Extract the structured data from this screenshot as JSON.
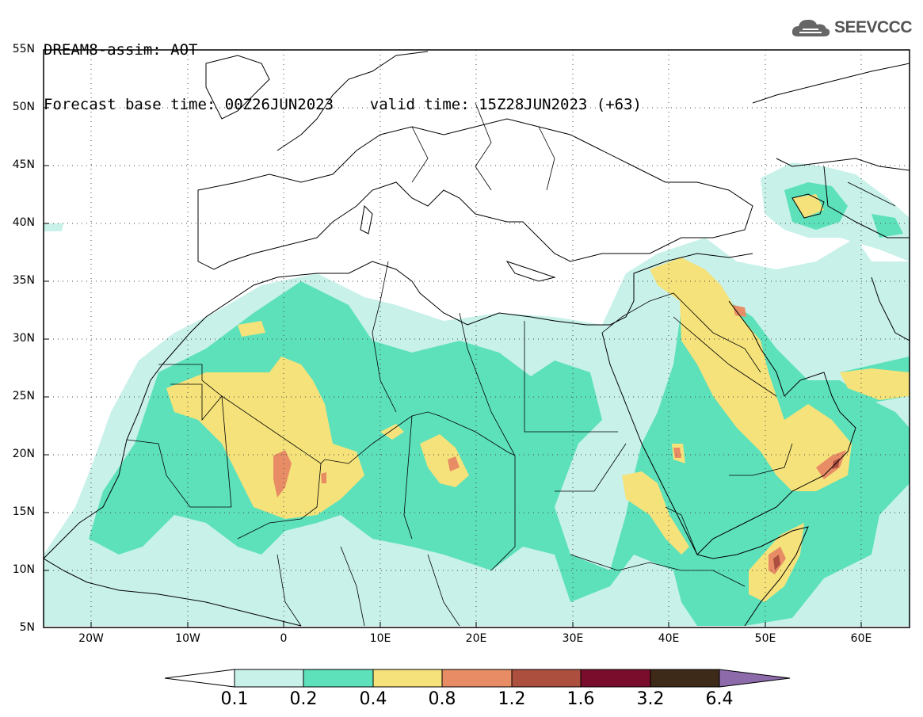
{
  "header": {
    "line1": "DREAM8-assim: AOT",
    "line2": "Forecast base time: 00Z26JUN2023    valid time: 15Z28JUN2023 (+63)"
  },
  "logo": {
    "text": "SEEVCCC",
    "icon": "cloud-icon"
  },
  "map": {
    "lon_range": [
      -25,
      65
    ],
    "lat_range": [
      5,
      55
    ],
    "grid": "dotted",
    "lat_labels": [
      "55N",
      "50N",
      "45N",
      "40N",
      "35N",
      "30N",
      "25N",
      "20N",
      "15N",
      "10N",
      "5N"
    ],
    "lon_labels": [
      "20W",
      "10W",
      "0",
      "10E",
      "20E",
      "30E",
      "40E",
      "50E",
      "60E"
    ]
  },
  "colorbar": {
    "labels": [
      "0.1",
      "0.2",
      "0.4",
      "0.8",
      "1.2",
      "1.6",
      "3.2",
      "6.4"
    ],
    "colors": [
      "#c8f1ea",
      "#5de1bb",
      "#f5e27a",
      "#e88c66",
      "#ad4f3f",
      "#7a0c2c",
      "#3d2a18",
      "#8d6bab"
    ],
    "under_color": "#ffffff",
    "over_color": "#8d6bab"
  }
}
